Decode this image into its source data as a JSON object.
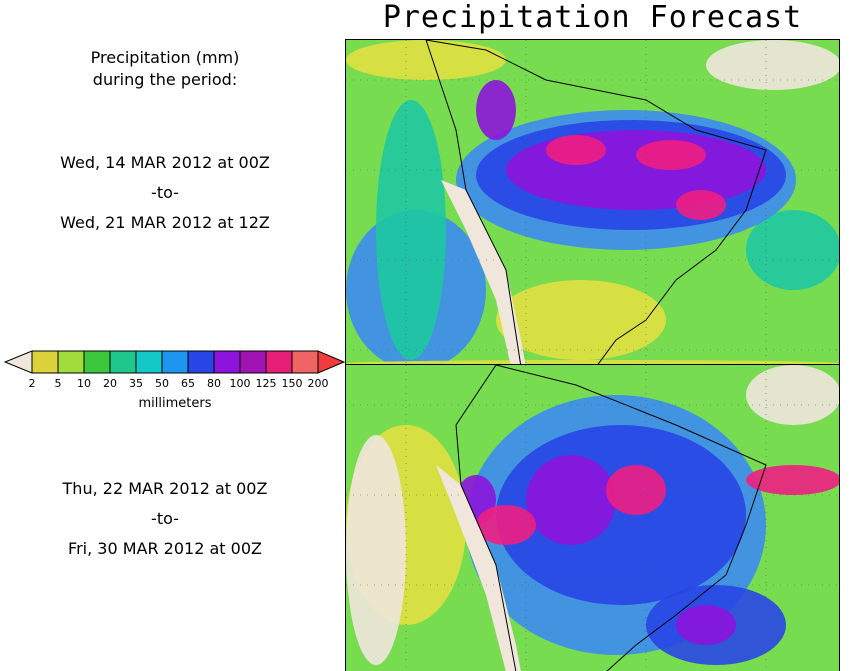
{
  "title": "Precipitation Forecast",
  "caption": {
    "line1": "Precipitation (mm)",
    "line2": "during the period:"
  },
  "period1": {
    "start": "Wed, 14 MAR 2012 at 00Z",
    "sep": "-to-",
    "end": "Wed, 21 MAR 2012 at 12Z"
  },
  "period2": {
    "start": "Thu, 22 MAR 2012 at 00Z",
    "sep": "-to-",
    "end": "Fri, 30 MAR 2012 at 00Z"
  },
  "legend": {
    "unit_label": "millimeters",
    "ticks": [
      "2",
      "5",
      "10",
      "20",
      "35",
      "50",
      "65",
      "80",
      "100",
      "125",
      "150",
      "200"
    ],
    "colors": [
      "#f0e6dc",
      "#dcd23c",
      "#a0dc3c",
      "#3cc83c",
      "#1ec88c",
      "#14c8c8",
      "#1e96f0",
      "#2846e6",
      "#8c14dc",
      "#a014b4",
      "#e61e78",
      "#f06464",
      "#f03c3c"
    ]
  },
  "map_palette": {
    "ocean_low": "#d8f0a0",
    "land": "#f0e6dc",
    "dry": "#e0e040",
    "light": "#78dc50",
    "moderate": "#1ec8a0",
    "blue": "#3c8cf0",
    "heavy": "#2846e6",
    "very_heavy": "#8c14dc",
    "extreme": "#f01e82"
  }
}
